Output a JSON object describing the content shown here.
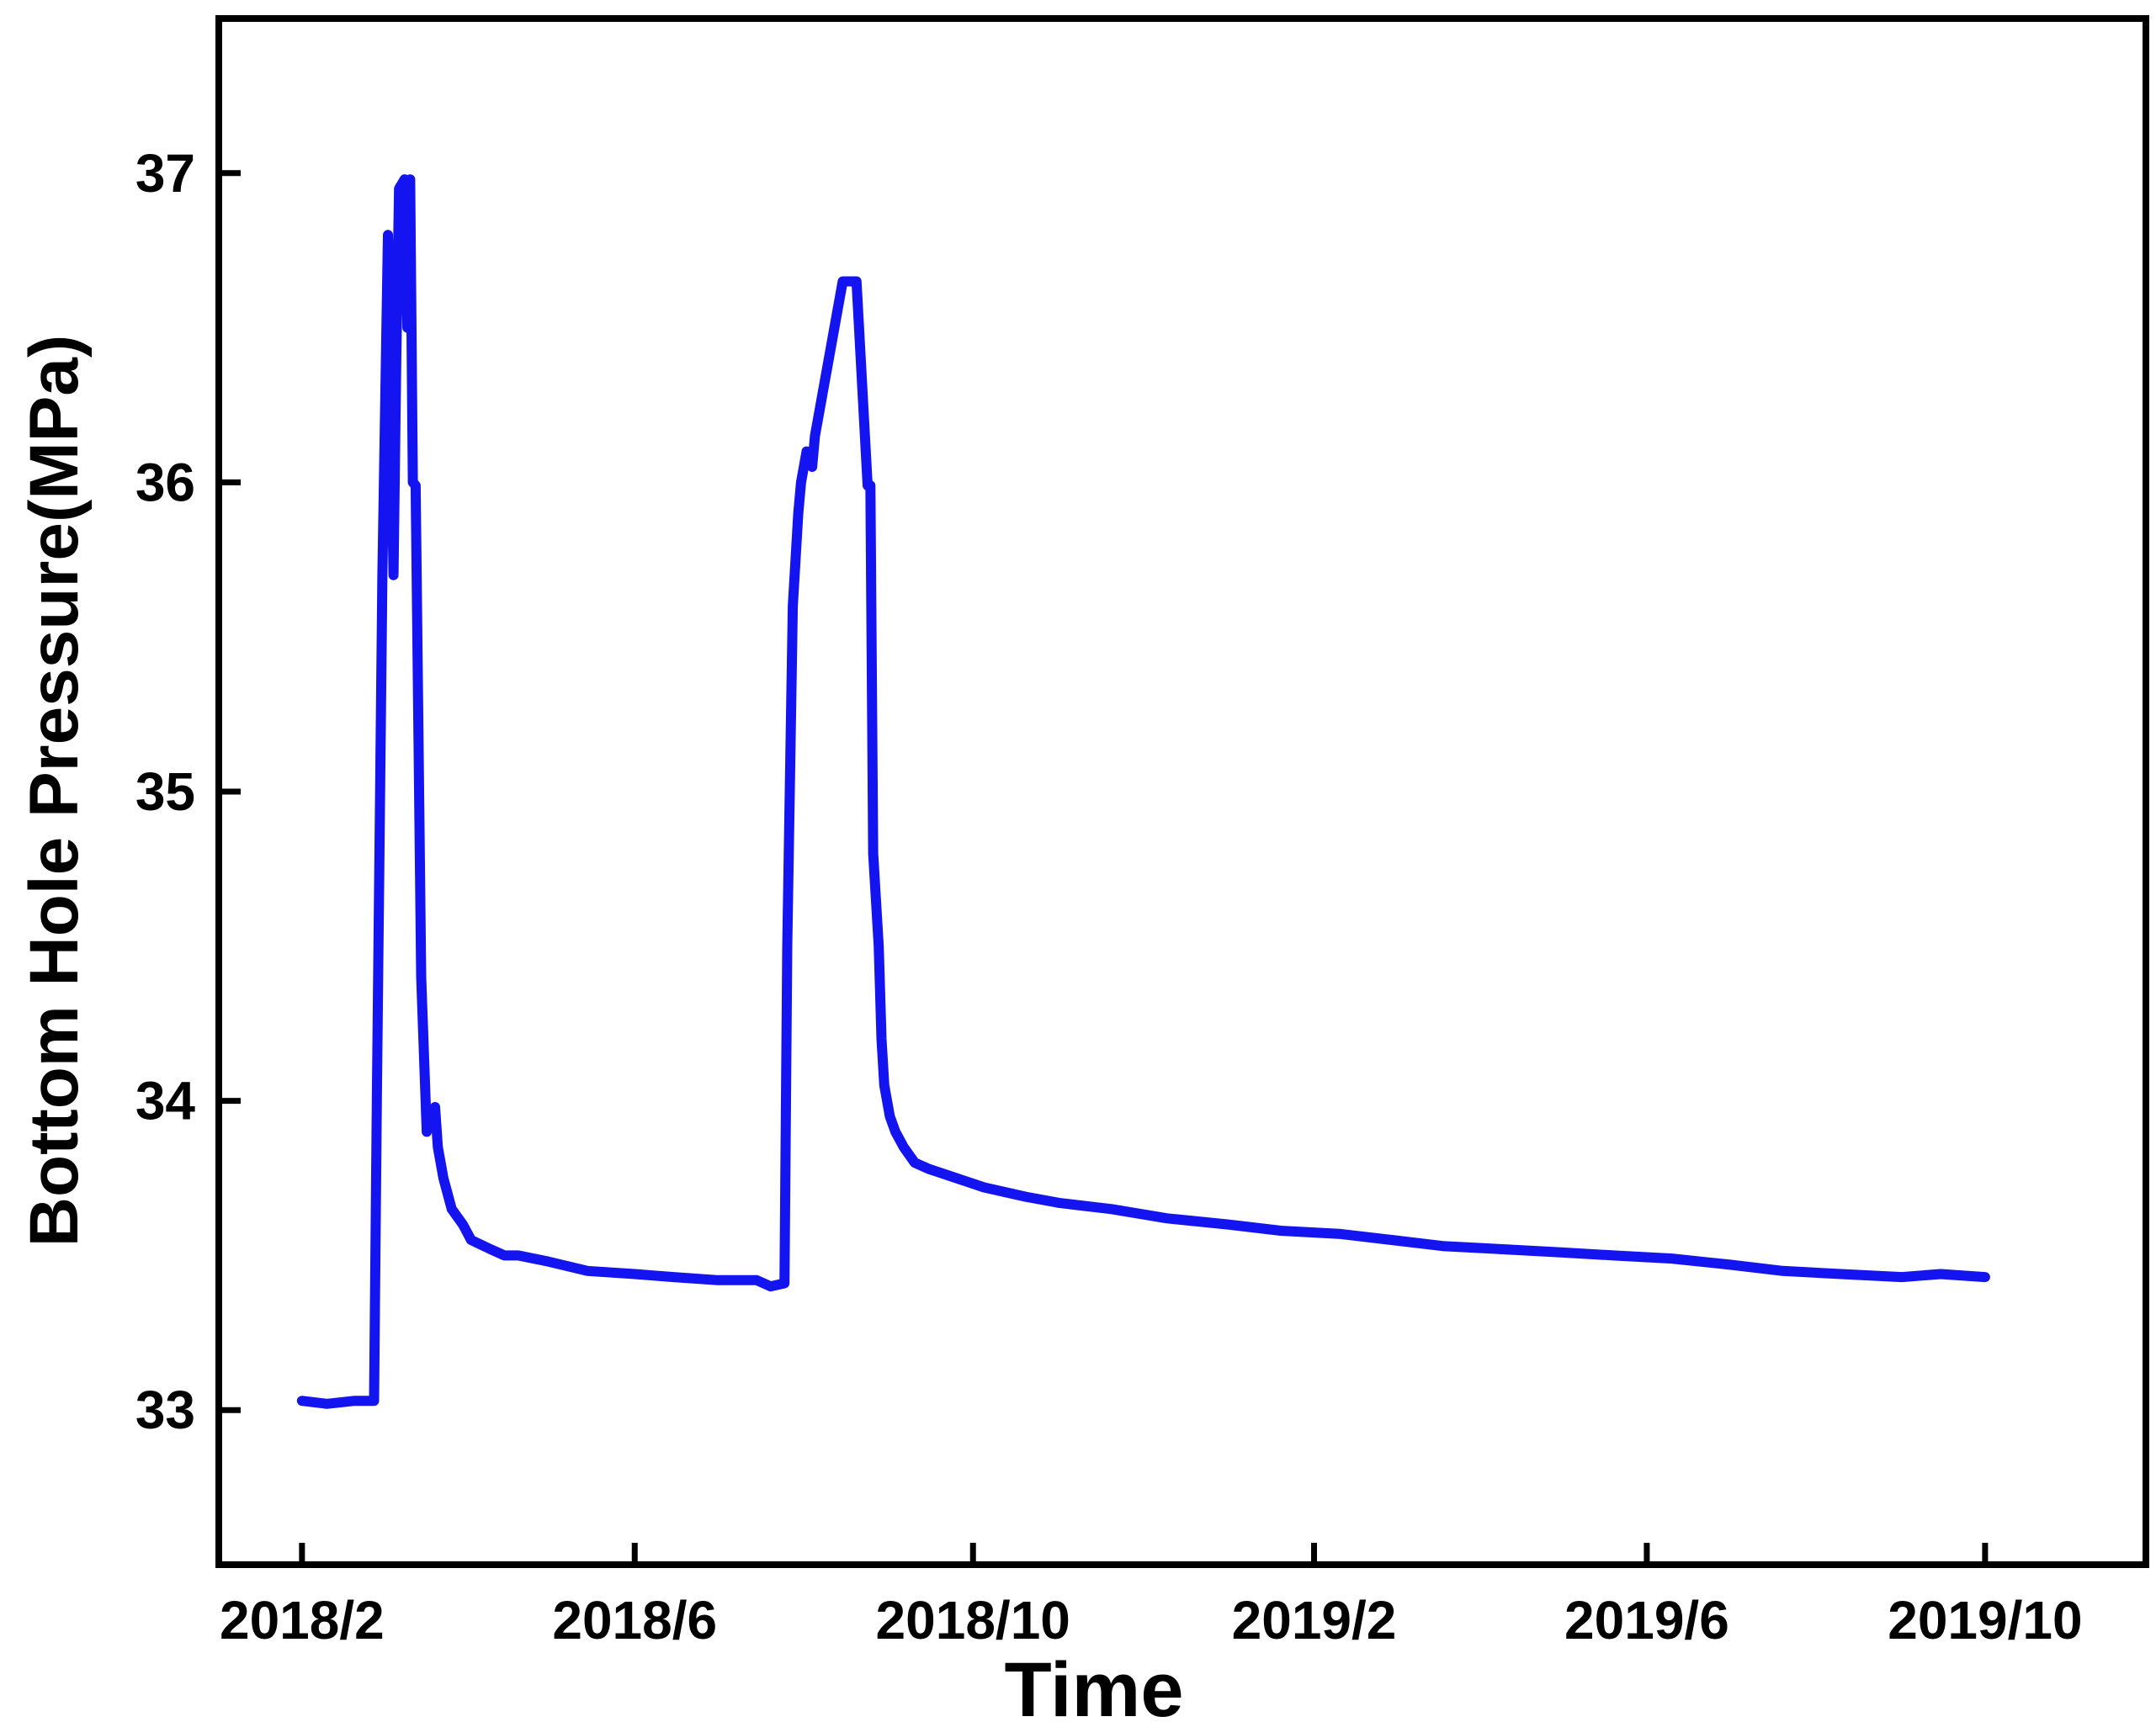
{
  "chart_data": {
    "type": "line",
    "title": "",
    "xlabel": "Time",
    "ylabel": "Bottom Hole Pressure(MPa)",
    "x_type": "date",
    "xlim": [
      "2018-01-02",
      "2019-11-28"
    ],
    "ylim": [
      32.5,
      37.5
    ],
    "x_ticks": [
      {
        "date": "2018-02-01",
        "label": "2018/2"
      },
      {
        "date": "2018-06-01",
        "label": "2018/6"
      },
      {
        "date": "2018-10-01",
        "label": "2018/10"
      },
      {
        "date": "2019-02-01",
        "label": "2019/2"
      },
      {
        "date": "2019-06-01",
        "label": "2019/6"
      },
      {
        "date": "2019-10-01",
        "label": "2019/10"
      }
    ],
    "y_ticks": [
      {
        "value": 33,
        "label": "33"
      },
      {
        "value": 34,
        "label": "34"
      },
      {
        "value": 35,
        "label": "35"
      },
      {
        "value": 36,
        "label": "36"
      },
      {
        "value": 37,
        "label": "37"
      }
    ],
    "grid": false,
    "legend": "none",
    "color": "#1414f0",
    "series": [
      {
        "x": [
          "2018-02-01",
          "2018-02-10",
          "2018-02-20",
          "2018-02-27",
          "2018-02-28",
          "2018-03-02",
          "2018-03-04",
          "2018-03-06",
          "2018-03-07",
          "2018-03-08",
          "2018-03-10",
          "2018-03-11",
          "2018-03-12",
          "2018-03-13",
          "2018-03-14",
          "2018-03-15",
          "2018-03-16",
          "2018-03-18",
          "2018-03-21",
          "2018-03-22",
          "2018-03-23",
          "2018-03-24",
          "2018-03-27",
          "2018-03-31",
          "2018-04-03",
          "2018-04-10",
          "2018-04-15",
          "2018-04-20",
          "2018-05-01",
          "2018-05-15",
          "2018-06-01",
          "2018-06-15",
          "2018-07-01",
          "2018-07-15",
          "2018-07-20",
          "2018-07-25",
          "2018-07-26",
          "2018-07-28",
          "2018-07-30",
          "2018-07-31",
          "2018-08-02",
          "2018-08-04",
          "2018-08-05",
          "2018-08-06",
          "2018-08-07",
          "2018-08-10",
          "2018-08-15",
          "2018-08-20",
          "2018-08-24",
          "2018-08-25",
          "2018-08-26",
          "2018-08-28",
          "2018-08-29",
          "2018-08-30",
          "2018-09-01",
          "2018-09-03",
          "2018-09-06",
          "2018-09-10",
          "2018-09-15",
          "2018-09-25",
          "2018-10-05",
          "2018-10-20",
          "2018-11-01",
          "2018-11-20",
          "2018-12-10",
          "2019-01-01",
          "2019-01-20",
          "2019-02-10",
          "2019-03-01",
          "2019-03-20",
          "2019-04-10",
          "2019-05-01",
          "2019-05-20",
          "2019-06-10",
          "2019-07-01",
          "2019-07-20",
          "2019-08-10",
          "2019-09-01",
          "2019-09-15",
          "2019-10-01"
        ],
        "y": [
          33.03,
          33.02,
          33.03,
          33.03,
          34.0,
          35.7,
          36.8,
          35.7,
          36.4,
          36.95,
          36.98,
          36.5,
          36.98,
          36.0,
          35.99,
          35.2,
          34.4,
          33.9,
          33.98,
          33.85,
          33.8,
          33.75,
          33.65,
          33.6,
          33.55,
          33.52,
          33.5,
          33.5,
          33.48,
          33.45,
          33.44,
          33.43,
          33.42,
          33.42,
          33.4,
          33.41,
          34.5,
          35.6,
          35.9,
          36.0,
          36.1,
          36.05,
          36.15,
          36.2,
          36.25,
          36.4,
          36.65,
          36.65,
          35.99,
          35.99,
          34.8,
          34.5,
          34.2,
          34.05,
          33.95,
          33.9,
          33.85,
          33.8,
          33.78,
          33.75,
          33.72,
          33.69,
          33.67,
          33.65,
          33.62,
          33.6,
          33.58,
          33.57,
          33.55,
          33.53,
          33.52,
          33.51,
          33.5,
          33.49,
          33.47,
          33.45,
          33.44,
          33.43,
          33.44,
          33.43
        ]
      }
    ]
  }
}
